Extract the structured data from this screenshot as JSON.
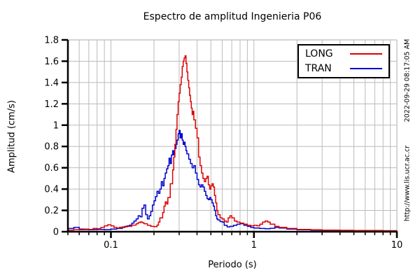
{
  "title": "Espectro de amplitud Ingenieria P06",
  "side_notes": {
    "timestamp": "2022-09-29 08:17:05 AM",
    "url": "http://www.lis.ucr.ac.cr"
  },
  "legend": {
    "entries": [
      {
        "label": "LONG",
        "color": "#dd0000"
      },
      {
        "label": "TRAN",
        "color": "#0000cd"
      }
    ]
  },
  "colors": {
    "grid": "#bbbbbb",
    "axis": "#000000",
    "background": "#ffffff"
  },
  "chart_data": {
    "type": "line",
    "title": "Espectro de amplitud Ingenieria P06",
    "xlabel": "Periodo (s)",
    "ylabel": "Amplitud (cm/s)",
    "x_scale": "log",
    "xlim": [
      0.05,
      10
    ],
    "ylim": [
      0,
      1.8
    ],
    "grid": true,
    "legend_position": "top-right",
    "x_major_ticks": [
      0.1,
      1,
      10
    ],
    "x_major_tick_labels": [
      "0.1",
      "1",
      "10"
    ],
    "x_minor_ticks": [
      0.05,
      0.06,
      0.07,
      0.08,
      0.09,
      0.2,
      0.3,
      0.4,
      0.5,
      0.6,
      0.7,
      0.8,
      0.9,
      2,
      3,
      4,
      5,
      6,
      7,
      8,
      9
    ],
    "y_ticks": [
      0,
      0.2,
      0.4,
      0.6,
      0.8,
      1,
      1.2,
      1.4,
      1.6,
      1.8
    ],
    "y_tick_labels": [
      "0",
      "0.2",
      "0.4",
      "0.6",
      "0.8",
      "1",
      "1.2",
      "1.4",
      "1.6",
      "1.8"
    ],
    "series": [
      {
        "name": "TRAN",
        "color": "#0000cd",
        "points": [
          [
            0.05,
            0.03
          ],
          [
            0.055,
            0.04
          ],
          [
            0.06,
            0.025
          ],
          [
            0.065,
            0.02
          ],
          [
            0.07,
            0.018
          ],
          [
            0.075,
            0.02
          ],
          [
            0.08,
            0.022
          ],
          [
            0.09,
            0.02
          ],
          [
            0.1,
            0.025
          ],
          [
            0.11,
            0.03
          ],
          [
            0.12,
            0.04
          ],
          [
            0.125,
            0.05
          ],
          [
            0.13,
            0.055
          ],
          [
            0.135,
            0.062
          ],
          [
            0.14,
            0.08
          ],
          [
            0.145,
            0.1
          ],
          [
            0.15,
            0.12
          ],
          [
            0.155,
            0.15
          ],
          [
            0.16,
            0.14
          ],
          [
            0.165,
            0.22
          ],
          [
            0.17,
            0.25
          ],
          [
            0.175,
            0.16
          ],
          [
            0.18,
            0.12
          ],
          [
            0.185,
            0.15
          ],
          [
            0.19,
            0.19
          ],
          [
            0.195,
            0.25
          ],
          [
            0.2,
            0.29
          ],
          [
            0.205,
            0.33
          ],
          [
            0.21,
            0.38
          ],
          [
            0.215,
            0.36
          ],
          [
            0.22,
            0.4
          ],
          [
            0.225,
            0.47
          ],
          [
            0.23,
            0.43
          ],
          [
            0.235,
            0.5
          ],
          [
            0.24,
            0.55
          ],
          [
            0.245,
            0.59
          ],
          [
            0.25,
            0.62
          ],
          [
            0.255,
            0.69
          ],
          [
            0.26,
            0.64
          ],
          [
            0.265,
            0.72
          ],
          [
            0.27,
            0.76
          ],
          [
            0.275,
            0.72
          ],
          [
            0.28,
            0.78
          ],
          [
            0.285,
            0.82
          ],
          [
            0.29,
            0.86
          ],
          [
            0.295,
            0.92
          ],
          [
            0.3,
            0.95
          ],
          [
            0.305,
            0.88
          ],
          [
            0.31,
            0.92
          ],
          [
            0.315,
            0.86
          ],
          [
            0.32,
            0.82
          ],
          [
            0.325,
            0.84
          ],
          [
            0.33,
            0.8
          ],
          [
            0.335,
            0.76
          ],
          [
            0.34,
            0.73
          ],
          [
            0.35,
            0.68
          ],
          [
            0.36,
            0.64
          ],
          [
            0.37,
            0.6
          ],
          [
            0.38,
            0.62
          ],
          [
            0.39,
            0.55
          ],
          [
            0.4,
            0.49
          ],
          [
            0.41,
            0.44
          ],
          [
            0.42,
            0.42
          ],
          [
            0.43,
            0.44
          ],
          [
            0.44,
            0.42
          ],
          [
            0.45,
            0.38
          ],
          [
            0.46,
            0.34
          ],
          [
            0.47,
            0.31
          ],
          [
            0.48,
            0.3
          ],
          [
            0.49,
            0.32
          ],
          [
            0.5,
            0.3
          ],
          [
            0.51,
            0.27
          ],
          [
            0.52,
            0.24
          ],
          [
            0.53,
            0.2
          ],
          [
            0.54,
            0.15
          ],
          [
            0.55,
            0.12
          ],
          [
            0.56,
            0.11
          ],
          [
            0.58,
            0.095
          ],
          [
            0.6,
            0.09
          ],
          [
            0.62,
            0.06
          ],
          [
            0.65,
            0.045
          ],
          [
            0.68,
            0.05
          ],
          [
            0.72,
            0.06
          ],
          [
            0.76,
            0.07
          ],
          [
            0.8,
            0.075
          ],
          [
            0.85,
            0.06
          ],
          [
            0.9,
            0.05
          ],
          [
            0.95,
            0.04
          ],
          [
            1.0,
            0.035
          ],
          [
            1.1,
            0.03
          ],
          [
            1.2,
            0.028
          ],
          [
            1.3,
            0.032
          ],
          [
            1.4,
            0.04
          ],
          [
            1.5,
            0.035
          ],
          [
            1.7,
            0.025
          ],
          [
            2.0,
            0.018
          ],
          [
            2.5,
            0.014
          ],
          [
            3.0,
            0.012
          ],
          [
            4.0,
            0.01
          ],
          [
            5.0,
            0.009
          ],
          [
            6.0,
            0.008
          ],
          [
            8.0,
            0.007
          ],
          [
            10.0,
            0.007
          ]
        ]
      },
      {
        "name": "LONG",
        "color": "#dd0000",
        "points": [
          [
            0.05,
            0.015
          ],
          [
            0.055,
            0.02
          ],
          [
            0.06,
            0.018
          ],
          [
            0.065,
            0.025
          ],
          [
            0.07,
            0.022
          ],
          [
            0.075,
            0.03
          ],
          [
            0.08,
            0.028
          ],
          [
            0.085,
            0.04
          ],
          [
            0.09,
            0.055
          ],
          [
            0.095,
            0.065
          ],
          [
            0.1,
            0.055
          ],
          [
            0.105,
            0.04
          ],
          [
            0.11,
            0.035
          ],
          [
            0.115,
            0.042
          ],
          [
            0.12,
            0.045
          ],
          [
            0.13,
            0.05
          ],
          [
            0.14,
            0.062
          ],
          [
            0.15,
            0.075
          ],
          [
            0.155,
            0.085
          ],
          [
            0.16,
            0.092
          ],
          [
            0.165,
            0.085
          ],
          [
            0.17,
            0.075
          ],
          [
            0.18,
            0.06
          ],
          [
            0.19,
            0.05
          ],
          [
            0.2,
            0.048
          ],
          [
            0.21,
            0.062
          ],
          [
            0.215,
            0.09
          ],
          [
            0.22,
            0.13
          ],
          [
            0.23,
            0.18
          ],
          [
            0.235,
            0.24
          ],
          [
            0.24,
            0.28
          ],
          [
            0.245,
            0.26
          ],
          [
            0.25,
            0.32
          ],
          [
            0.26,
            0.45
          ],
          [
            0.27,
            0.58
          ],
          [
            0.275,
            0.7
          ],
          [
            0.28,
            0.82
          ],
          [
            0.285,
            0.96
          ],
          [
            0.29,
            1.1
          ],
          [
            0.295,
            1.22
          ],
          [
            0.3,
            1.3
          ],
          [
            0.305,
            1.38
          ],
          [
            0.31,
            1.45
          ],
          [
            0.315,
            1.55
          ],
          [
            0.32,
            1.6
          ],
          [
            0.325,
            1.63
          ],
          [
            0.33,
            1.65
          ],
          [
            0.335,
            1.58
          ],
          [
            0.34,
            1.5
          ],
          [
            0.345,
            1.42
          ],
          [
            0.35,
            1.35
          ],
          [
            0.355,
            1.28
          ],
          [
            0.36,
            1.22
          ],
          [
            0.365,
            1.16
          ],
          [
            0.37,
            1.1
          ],
          [
            0.375,
            1.13
          ],
          [
            0.38,
            1.05
          ],
          [
            0.39,
            0.97
          ],
          [
            0.4,
            0.88
          ],
          [
            0.41,
            0.7
          ],
          [
            0.42,
            0.62
          ],
          [
            0.43,
            0.55
          ],
          [
            0.44,
            0.5
          ],
          [
            0.45,
            0.47
          ],
          [
            0.46,
            0.5
          ],
          [
            0.47,
            0.52
          ],
          [
            0.48,
            0.44
          ],
          [
            0.49,
            0.4
          ],
          [
            0.5,
            0.43
          ],
          [
            0.51,
            0.45
          ],
          [
            0.52,
            0.42
          ],
          [
            0.53,
            0.34
          ],
          [
            0.54,
            0.27
          ],
          [
            0.55,
            0.2
          ],
          [
            0.56,
            0.16
          ],
          [
            0.58,
            0.13
          ],
          [
            0.6,
            0.12
          ],
          [
            0.62,
            0.1
          ],
          [
            0.64,
            0.09
          ],
          [
            0.66,
            0.13
          ],
          [
            0.68,
            0.15
          ],
          [
            0.7,
            0.13
          ],
          [
            0.73,
            0.1
          ],
          [
            0.76,
            0.09
          ],
          [
            0.8,
            0.08
          ],
          [
            0.85,
            0.07
          ],
          [
            0.9,
            0.06
          ],
          [
            0.95,
            0.055
          ],
          [
            1.0,
            0.06
          ],
          [
            1.05,
            0.055
          ],
          [
            1.1,
            0.07
          ],
          [
            1.15,
            0.09
          ],
          [
            1.2,
            0.1
          ],
          [
            1.25,
            0.09
          ],
          [
            1.3,
            0.07
          ],
          [
            1.4,
            0.05
          ],
          [
            1.5,
            0.04
          ],
          [
            1.7,
            0.03
          ],
          [
            2.0,
            0.022
          ],
          [
            2.5,
            0.018
          ],
          [
            3.0,
            0.015
          ],
          [
            4.0,
            0.013
          ],
          [
            5.0,
            0.012
          ],
          [
            6.0,
            0.011
          ],
          [
            8.0,
            0.01
          ],
          [
            10.0,
            0.01
          ]
        ]
      }
    ]
  }
}
